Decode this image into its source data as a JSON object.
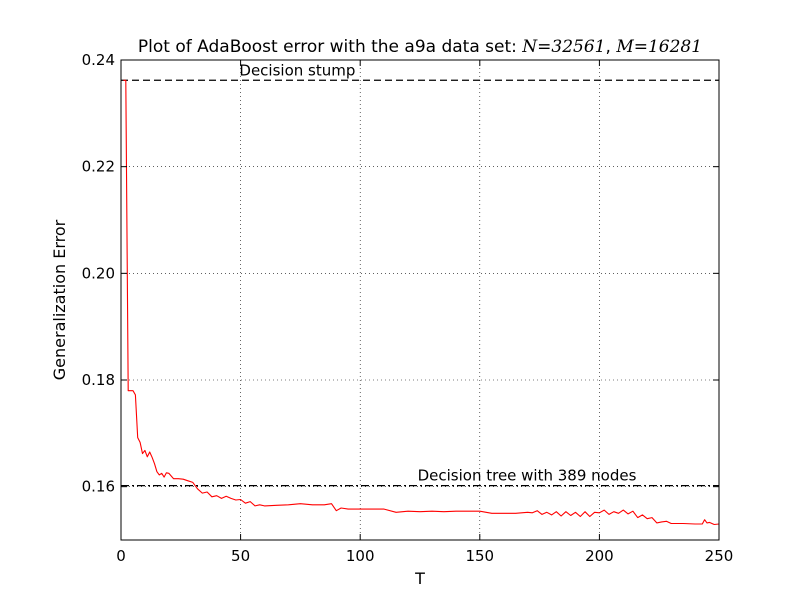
{
  "chart_data": {
    "type": "line",
    "title": {
      "prefix": "Plot of AdaBoost error with the a9a data set: ",
      "n_var": "N",
      "n_value": "32561",
      "m_var": "M",
      "m_value": "16281"
    },
    "xlabel": "T",
    "ylabel": "Generalization Error",
    "xlim": [
      0,
      250
    ],
    "ylim": [
      0.15,
      0.24
    ],
    "xticks": [
      0,
      50,
      100,
      150,
      200,
      250
    ],
    "xtick_labels": [
      "0",
      "50",
      "100",
      "150",
      "200",
      "250"
    ],
    "yticks": [
      0.16,
      0.18,
      0.2,
      0.22,
      0.24
    ],
    "ytick_labels": [
      "0.16",
      "0.18",
      "0.20",
      "0.22",
      "0.24"
    ],
    "grid": true,
    "grid_style": "dotted",
    "reference_lines": [
      {
        "label": "Decision stump",
        "y": 0.2362,
        "style": "dashed",
        "color": "#000000"
      },
      {
        "label": "Decision tree with 389 nodes",
        "y": 0.1602,
        "style": "dashdot",
        "color": "#000000"
      }
    ],
    "series": [
      {
        "color": "#ff0000",
        "x": [
          1,
          2,
          3,
          4,
          5,
          6,
          7,
          8,
          9,
          10,
          11,
          12,
          13,
          14,
          15,
          16,
          17,
          18,
          19,
          20,
          22,
          24,
          26,
          28,
          30,
          32,
          34,
          36,
          38,
          40,
          42,
          44,
          46,
          48,
          50,
          52,
          54,
          56,
          58,
          60,
          65,
          70,
          75,
          80,
          85,
          88,
          90,
          92,
          95,
          100,
          105,
          110,
          115,
          120,
          125,
          130,
          135,
          140,
          145,
          150,
          155,
          160,
          165,
          170,
          172,
          174,
          176,
          178,
          180,
          182,
          184,
          186,
          188,
          190,
          192,
          194,
          196,
          198,
          200,
          202,
          204,
          206,
          208,
          210,
          212,
          214,
          216,
          218,
          220,
          222,
          224,
          226,
          228,
          230,
          235,
          240,
          243,
          244,
          245,
          246,
          248,
          250
        ],
        "y": [
          0.2362,
          0.2362,
          0.178,
          0.178,
          0.178,
          0.1772,
          0.1692,
          0.1683,
          0.1662,
          0.1668,
          0.1656,
          0.1665,
          0.1655,
          0.1643,
          0.1628,
          0.1622,
          0.1625,
          0.1618,
          0.1626,
          0.1625,
          0.1615,
          0.1615,
          0.1614,
          0.1611,
          0.1608,
          0.1596,
          0.1588,
          0.159,
          0.1581,
          0.1583,
          0.1578,
          0.1582,
          0.1578,
          0.1575,
          0.1576,
          0.1569,
          0.1572,
          0.1564,
          0.1566,
          0.1564,
          0.1565,
          0.1566,
          0.1568,
          0.1566,
          0.1566,
          0.1568,
          0.1555,
          0.156,
          0.1558,
          0.1558,
          0.1558,
          0.1558,
          0.1552,
          0.1554,
          0.1553,
          0.1554,
          0.1553,
          0.1554,
          0.1554,
          0.1554,
          0.155,
          0.155,
          0.155,
          0.1552,
          0.1551,
          0.1555,
          0.1548,
          0.1552,
          0.1547,
          0.1553,
          0.1545,
          0.1553,
          0.1546,
          0.1552,
          0.1544,
          0.1553,
          0.1544,
          0.1552,
          0.1551,
          0.1556,
          0.1548,
          0.1553,
          0.155,
          0.1556,
          0.1549,
          0.1554,
          0.1542,
          0.1547,
          0.154,
          0.1542,
          0.1532,
          0.1534,
          0.1535,
          0.1531,
          0.1531,
          0.153,
          0.153,
          0.1538,
          0.1532,
          0.1533,
          0.1529,
          0.153
        ]
      }
    ]
  }
}
